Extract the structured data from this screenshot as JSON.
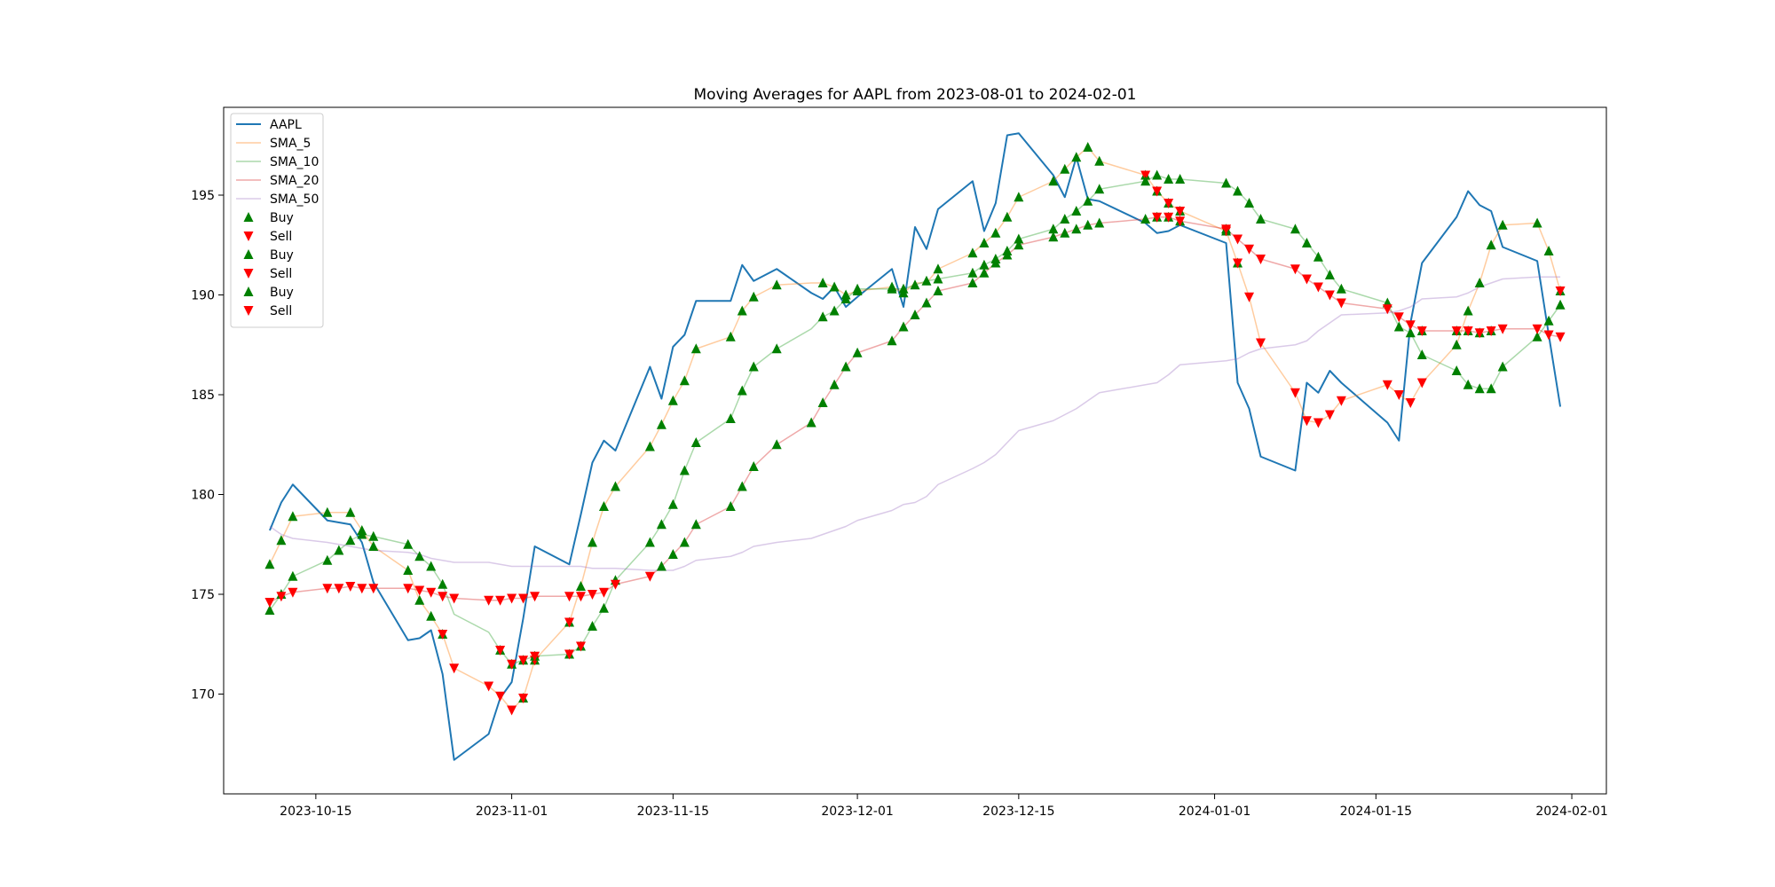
{
  "chart_data": {
    "type": "line",
    "title": "Moving Averages for AAPL from 2023-08-01 to 2024-02-01",
    "xlabel": "",
    "ylabel": "",
    "xlim": [
      "2023-10-07",
      "2024-02-04"
    ],
    "ylim": [
      165,
      199.4
    ],
    "x_ticks": [
      "2023-10-15",
      "2023-11-01",
      "2023-11-15",
      "2023-12-01",
      "2023-12-15",
      "2024-01-01",
      "2024-01-15",
      "2024-02-01"
    ],
    "y_ticks": [
      170,
      175,
      180,
      185,
      190,
      195
    ],
    "grid": false,
    "legend_position": "upper left",
    "dates": [
      "2023-10-11",
      "2023-10-12",
      "2023-10-13",
      "2023-10-16",
      "2023-10-17",
      "2023-10-18",
      "2023-10-19",
      "2023-10-20",
      "2023-10-23",
      "2023-10-24",
      "2023-10-25",
      "2023-10-26",
      "2023-10-27",
      "2023-10-30",
      "2023-10-31",
      "2023-11-01",
      "2023-11-02",
      "2023-11-03",
      "2023-11-06",
      "2023-11-07",
      "2023-11-08",
      "2023-11-09",
      "2023-11-10",
      "2023-11-13",
      "2023-11-14",
      "2023-11-15",
      "2023-11-16",
      "2023-11-17",
      "2023-11-20",
      "2023-11-21",
      "2023-11-22",
      "2023-11-24",
      "2023-11-27",
      "2023-11-28",
      "2023-11-29",
      "2023-11-30",
      "2023-12-01",
      "2023-12-04",
      "2023-12-05",
      "2023-12-06",
      "2023-12-07",
      "2023-12-08",
      "2023-12-11",
      "2023-12-12",
      "2023-12-13",
      "2023-12-14",
      "2023-12-15",
      "2023-12-18",
      "2023-12-19",
      "2023-12-20",
      "2023-12-21",
      "2023-12-22",
      "2023-12-26",
      "2023-12-27",
      "2023-12-28",
      "2023-12-29",
      "2024-01-02",
      "2024-01-03",
      "2024-01-04",
      "2024-01-05",
      "2024-01-08",
      "2024-01-09",
      "2024-01-10",
      "2024-01-11",
      "2024-01-12",
      "2024-01-16",
      "2024-01-17",
      "2024-01-18",
      "2024-01-19",
      "2024-01-22",
      "2024-01-23",
      "2024-01-24",
      "2024-01-25",
      "2024-01-26",
      "2024-01-29",
      "2024-01-30",
      "2024-01-31"
    ],
    "series": [
      {
        "name": "AAPL",
        "color": "#1f77b4",
        "opacity": 1,
        "width": 2,
        "values": [
          178.2,
          179.6,
          180.5,
          178.7,
          178.6,
          178.5,
          177.6,
          175.6,
          172.7,
          172.8,
          173.2,
          171.0,
          166.7,
          168.0,
          169.8,
          170.6,
          173.8,
          177.4,
          176.5,
          179.0,
          181.6,
          182.7,
          182.2,
          186.4,
          184.8,
          187.4,
          188.0,
          189.7,
          189.7,
          191.5,
          190.7,
          191.3,
          190.1,
          189.8,
          190.4,
          189.4,
          189.9,
          191.3,
          189.4,
          193.4,
          192.3,
          194.3,
          195.7,
          193.2,
          194.6,
          198.0,
          198.1,
          196.0,
          194.9,
          196.9,
          194.8,
          194.7,
          193.6,
          193.1,
          193.2,
          193.5,
          192.6,
          185.6,
          184.3,
          181.9,
          181.2,
          185.6,
          185.1,
          186.2,
          185.6,
          183.6,
          182.7,
          188.6,
          191.6,
          193.9,
          195.2,
          194.5,
          194.2,
          192.4,
          191.7,
          188.0,
          184.4
        ]
      },
      {
        "name": "SMA_5",
        "color": "#ff7f0e",
        "opacity": 0.4,
        "width": 1.5,
        "values": [
          176.5,
          177.7,
          178.9,
          179.1,
          179.1,
          179.1,
          178.2,
          177.4,
          176.2,
          174.7,
          173.9,
          173.0,
          171.3,
          170.4,
          169.9,
          169.2,
          169.8,
          171.7,
          173.6,
          175.4,
          177.6,
          179.4,
          180.4,
          182.4,
          183.5,
          184.7,
          185.7,
          187.3,
          187.9,
          189.2,
          189.9,
          190.5,
          190.6,
          190.6,
          190.4,
          190.0,
          190.2,
          190.4,
          190.1,
          190.6,
          190.6,
          191.3,
          192.1,
          192.6,
          193.1,
          193.9,
          194.9,
          195.7,
          196.3,
          196.9,
          197.4,
          196.7,
          196.0,
          195.2,
          194.6,
          194.2,
          193.2,
          191.6,
          189.9,
          187.6,
          185.1,
          183.7,
          183.6,
          184.0,
          184.7,
          185.5,
          185.0,
          184.6,
          185.6,
          187.5,
          189.2,
          190.6,
          192.5,
          193.5,
          193.6,
          192.2,
          190.2
        ]
      },
      {
        "name": "SMA_10",
        "color": "#2ca02c",
        "opacity": 0.4,
        "width": 1.5,
        "values": [
          174.2,
          175.0,
          175.9,
          176.7,
          177.2,
          177.7,
          178.0,
          177.9,
          177.5,
          176.9,
          176.4,
          175.5,
          174.0,
          173.1,
          172.2,
          171.5,
          171.7,
          171.9,
          172.0,
          172.4,
          173.4,
          174.3,
          175.7,
          177.6,
          178.5,
          179.5,
          181.2,
          182.6,
          183.8,
          185.2,
          186.4,
          187.3,
          188.3,
          188.9,
          189.2,
          189.8,
          190.3,
          190.3,
          190.3,
          190.5,
          190.7,
          190.8,
          191.1,
          191.5,
          191.8,
          192.2,
          192.8,
          193.3,
          193.8,
          194.2,
          194.7,
          195.3,
          195.7,
          196.0,
          195.8,
          195.8,
          195.6,
          195.2,
          194.6,
          193.8,
          193.3,
          192.6,
          191.9,
          191.0,
          190.3,
          189.6,
          188.4,
          188.1,
          187.0,
          186.2,
          185.5,
          185.3,
          185.3,
          186.4,
          187.9,
          188.7,
          189.5
        ]
      },
      {
        "name": "SMA_20",
        "color": "#d62728",
        "opacity": 0.4,
        "width": 1.5,
        "values": [
          174.6,
          174.9,
          175.1,
          175.3,
          175.3,
          175.4,
          175.3,
          175.3,
          175.3,
          175.2,
          175.1,
          174.9,
          174.8,
          174.7,
          174.7,
          174.8,
          174.8,
          174.9,
          174.9,
          174.9,
          175.0,
          175.1,
          175.5,
          175.9,
          176.4,
          177.0,
          177.6,
          178.5,
          179.4,
          180.4,
          181.4,
          182.5,
          183.6,
          184.6,
          185.5,
          186.4,
          187.1,
          187.7,
          188.4,
          189.0,
          189.6,
          190.2,
          190.6,
          191.1,
          191.6,
          192.0,
          192.5,
          192.9,
          193.1,
          193.3,
          193.5,
          193.6,
          193.8,
          193.9,
          193.9,
          193.7,
          193.3,
          192.8,
          192.3,
          191.8,
          191.3,
          190.8,
          190.4,
          190.0,
          189.6,
          189.3,
          188.9,
          188.5,
          188.2,
          188.2,
          188.2,
          188.1,
          188.2,
          188.3,
          188.3,
          188.0,
          187.9
        ]
      },
      {
        "name": "SMA_50",
        "color": "#9467bd",
        "opacity": 0.35,
        "width": 1.5,
        "values": [
          178.4,
          178.0,
          177.8,
          177.6,
          177.5,
          177.4,
          177.3,
          177.2,
          177.1,
          177.0,
          176.8,
          176.7,
          176.6,
          176.6,
          176.5,
          176.4,
          176.4,
          176.4,
          176.4,
          176.4,
          176.3,
          176.3,
          176.3,
          176.2,
          176.2,
          176.2,
          176.4,
          176.7,
          176.9,
          177.1,
          177.4,
          177.6,
          177.8,
          178.0,
          178.2,
          178.4,
          178.7,
          179.2,
          179.5,
          179.6,
          179.9,
          180.5,
          181.3,
          181.6,
          182.0,
          182.6,
          183.2,
          183.7,
          184.0,
          184.3,
          184.7,
          185.1,
          185.5,
          185.6,
          186.0,
          186.5,
          186.7,
          186.8,
          187.1,
          187.3,
          187.5,
          187.7,
          188.2,
          188.6,
          189.0,
          189.1,
          189.2,
          189.4,
          189.8,
          189.9,
          190.1,
          190.4,
          190.6,
          190.8,
          190.9,
          190.9,
          190.9
        ]
      }
    ],
    "markers": [
      {
        "name": "Buy",
        "symbol": "triangle-up",
        "color": "#008000",
        "base": "SMA_5",
        "indices": [
          0,
          1,
          2,
          3,
          5,
          6,
          7,
          8,
          9,
          10,
          11,
          16,
          17,
          18,
          19,
          20,
          21,
          22,
          23,
          24,
          25,
          26,
          27,
          28,
          29,
          30,
          31,
          33,
          34,
          35,
          36,
          37,
          38,
          41,
          42,
          43,
          44,
          45,
          46,
          47,
          48,
          49,
          50,
          51,
          52,
          53,
          54,
          55,
          56,
          57,
          69,
          70,
          71,
          72,
          73,
          74,
          75,
          76
        ]
      },
      {
        "name": "Sell",
        "symbol": "triangle-down",
        "color": "#ff0000",
        "base": "SMA_5",
        "indices": [
          11,
          12,
          13,
          14,
          15,
          16,
          17,
          18,
          52,
          53,
          54,
          55,
          56,
          57,
          58,
          59,
          60,
          61,
          62,
          63,
          64,
          65,
          66,
          67,
          68,
          76
        ]
      },
      {
        "name": "Buy",
        "symbol": "triangle-up",
        "color": "#008000",
        "base": "SMA_10",
        "indices": [
          0,
          1,
          2,
          3,
          4,
          5,
          6,
          7,
          8,
          9,
          10,
          11,
          14,
          15,
          16,
          17,
          18,
          19,
          20,
          21,
          22,
          23,
          24,
          25,
          26,
          27,
          28,
          29,
          30,
          31,
          33,
          34,
          35,
          36,
          37,
          38,
          39,
          40,
          41,
          42,
          43,
          44,
          45,
          46,
          47,
          48,
          49,
          50,
          51,
          52,
          53,
          54,
          55,
          56,
          57,
          58,
          59,
          60,
          61,
          62,
          63,
          64,
          65,
          66,
          67,
          68,
          69,
          70,
          71,
          72,
          73,
          74,
          75,
          76
        ]
      },
      {
        "name": "Sell",
        "symbol": "triangle-down",
        "color": "#ff0000",
        "base": "SMA_10",
        "indices": [
          14,
          15,
          16,
          17,
          18,
          19
        ]
      },
      {
        "name": "Buy",
        "symbol": "triangle-up",
        "color": "#008000",
        "base": "SMA_20",
        "indices": [
          24,
          25,
          26,
          27,
          28,
          29,
          30,
          31,
          32,
          33,
          34,
          35,
          36,
          37,
          38,
          39,
          40,
          41,
          42,
          43,
          44,
          45,
          46,
          47,
          48,
          49,
          50,
          51,
          52,
          53,
          54,
          55,
          56,
          68,
          69,
          70,
          71,
          72
        ]
      },
      {
        "name": "Sell",
        "symbol": "triangle-down",
        "color": "#ff0000",
        "base": "SMA_20",
        "indices": [
          0,
          1,
          2,
          3,
          4,
          5,
          6,
          7,
          8,
          9,
          10,
          11,
          12,
          13,
          14,
          15,
          16,
          17,
          18,
          19,
          20,
          21,
          22,
          23,
          53,
          54,
          55,
          56,
          57,
          58,
          59,
          60,
          61,
          62,
          63,
          64,
          65,
          66,
          67,
          68,
          69,
          70,
          71,
          72,
          73,
          74,
          75,
          76
        ]
      }
    ]
  }
}
